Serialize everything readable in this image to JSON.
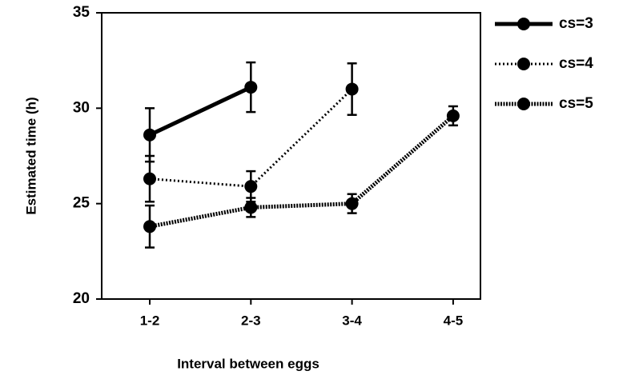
{
  "chart_data": {
    "type": "line",
    "x_label": "Interval between eggs",
    "y_label": "Estimated time (h)",
    "categories": [
      "1-2",
      "2-3",
      "3-4",
      "4-5"
    ],
    "ylim": [
      20,
      35
    ],
    "yticks": [
      20,
      25,
      30,
      35
    ],
    "legend": "right",
    "series": [
      {
        "name": "cs=3",
        "color": "#000000",
        "line_style": "solid",
        "values": [
          28.6,
          31.1,
          null,
          null
        ],
        "errors": [
          1.4,
          1.3,
          null,
          null
        ]
      },
      {
        "name": "cs=4",
        "color": "#000000",
        "line_style": "dotted",
        "values": [
          26.3,
          25.9,
          31.0,
          null
        ],
        "errors": [
          1.2,
          0.8,
          1.35,
          null
        ]
      },
      {
        "name": "cs=5",
        "color": "#000000",
        "line_style": "dashed",
        "values": [
          23.8,
          24.8,
          25.0,
          29.6
        ],
        "errors": [
          1.1,
          0.5,
          0.5,
          0.5
        ]
      }
    ]
  }
}
